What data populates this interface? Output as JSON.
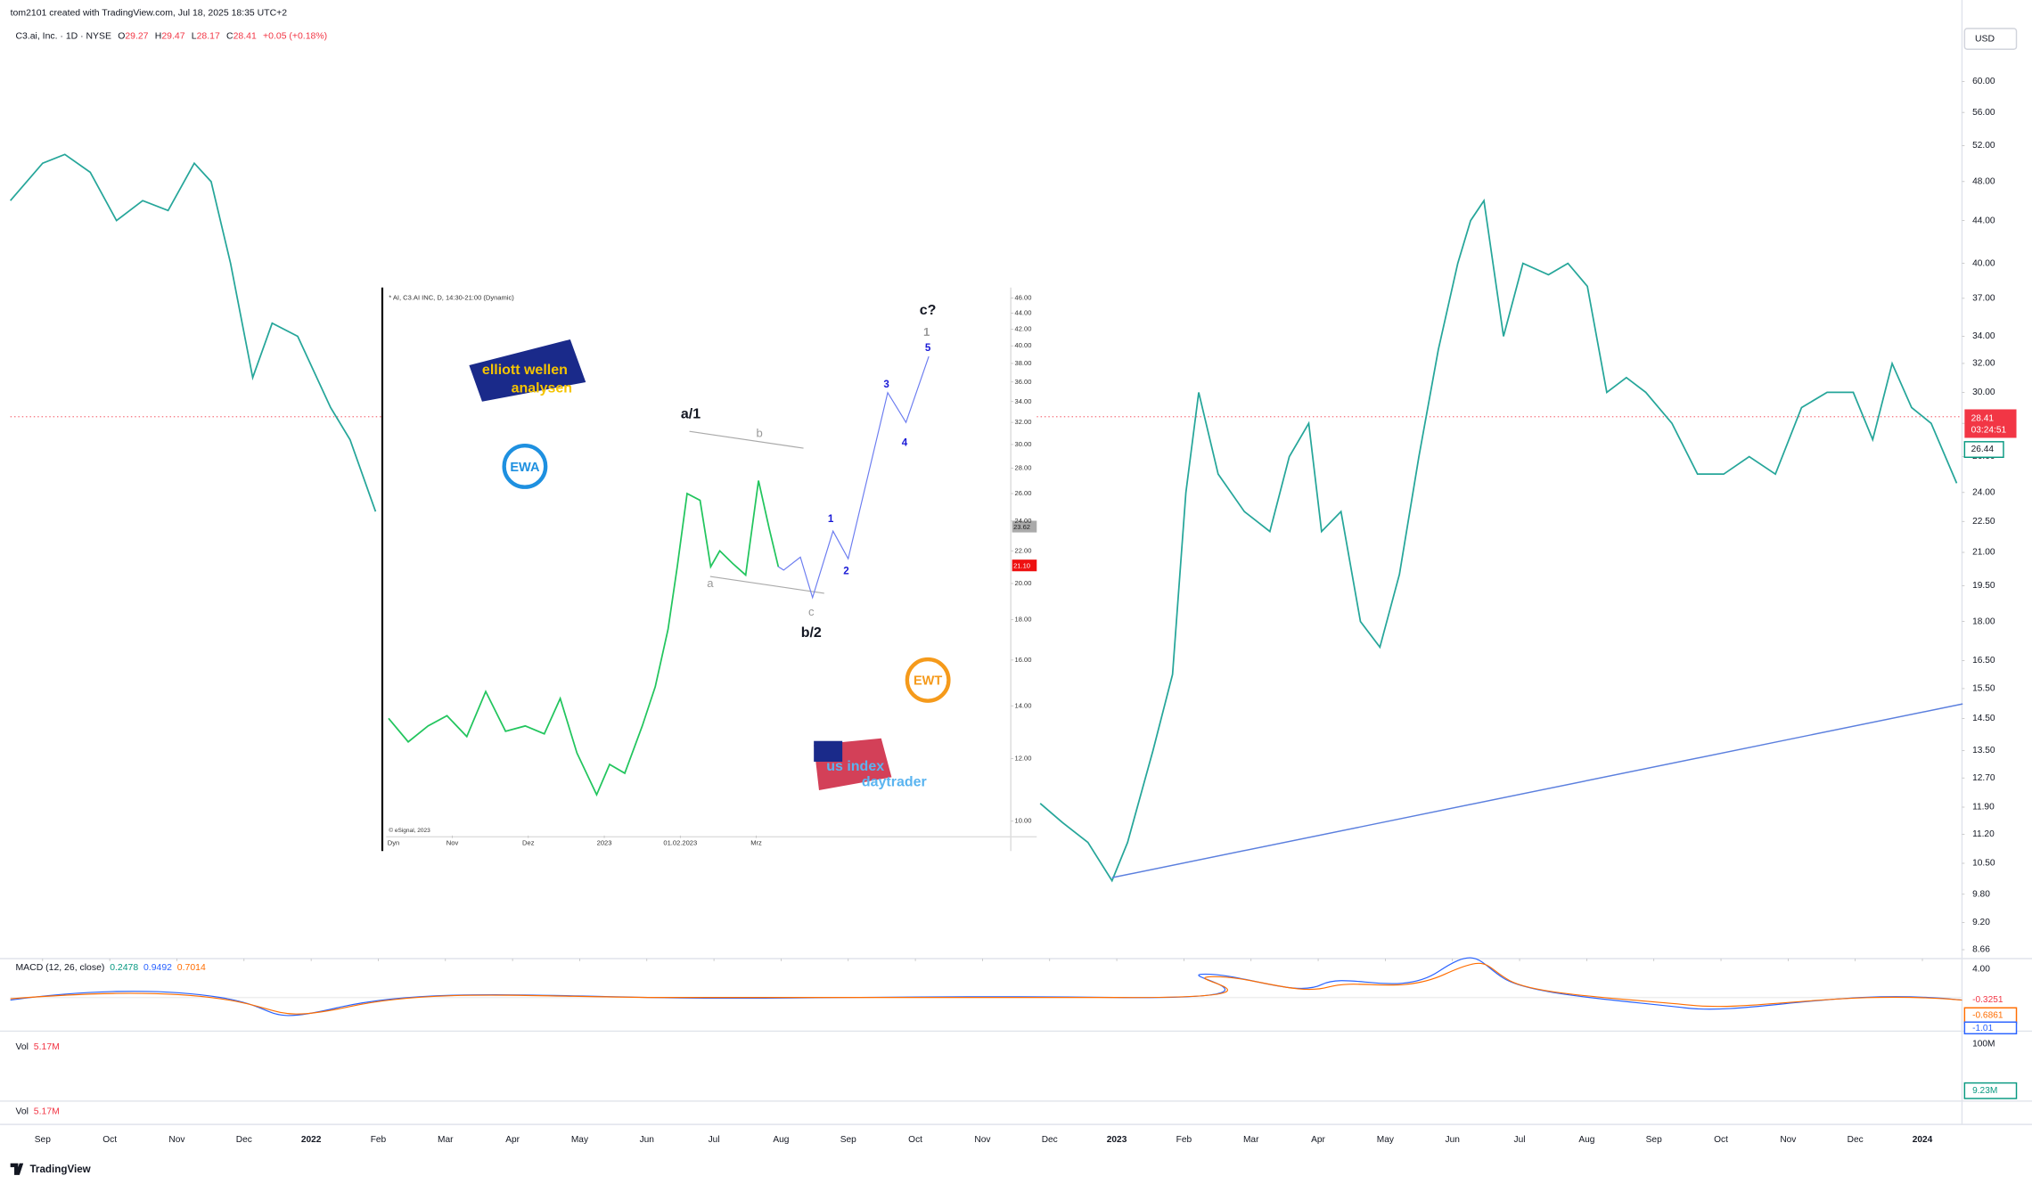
{
  "header": {
    "credit": "tom2101 created with TradingView.com, Jul 18, 2025 18:35 UTC+2"
  },
  "legend": {
    "symbol": "C3.ai, Inc. · 1D · NYSE",
    "open_label": "O",
    "open": "29.27",
    "high_label": "H",
    "high": "29.47",
    "low_label": "L",
    "low": "28.17",
    "close_label": "C",
    "close": "28.41",
    "change": "+0.05 (+0.18%)"
  },
  "currency": "USD",
  "price_tags": {
    "countdown": "03:24:51",
    "prev": "26.44"
  },
  "macd": {
    "label": "MACD (12, 26, close)",
    "values": [
      "0.2478",
      "0.9492",
      "0.7014"
    ],
    "axis_top": "4.00",
    "tags": [
      "-0.3251",
      "-0.6861",
      "-1.01"
    ]
  },
  "volume": {
    "label": "Vol",
    "value": "5.17M",
    "axis_top": "100M",
    "tag": "9.23M"
  },
  "volume2": {
    "label": "Vol",
    "value": "5.17M"
  },
  "footer": {
    "brand": "TradingView"
  },
  "inset": {
    "caption": "* AI, C3.AI INC, D, 14:30-21:00 (Dynamic)",
    "copyright": "© eSignal, 2023",
    "dyn": "Dyn",
    "price_tags": [
      "23.62",
      "21.10"
    ],
    "wave_labels": [
      "a/1",
      "b",
      "a",
      "c",
      "b/2",
      "1",
      "2",
      "3",
      "4",
      "5",
      "1",
      "c?"
    ],
    "logos": [
      "elliott wellen",
      "analysen",
      "EWA",
      "EWT",
      "us index",
      "daytrader"
    ]
  },
  "chart_data": [
    {
      "type": "line",
      "log_scale": true,
      "color": "#26a69a",
      "x": [
        -0.48,
        0,
        0.33,
        0.71,
        1.1,
        1.49,
        1.87,
        2.26,
        2.51,
        2.8,
        3.13,
        3.42,
        3.8,
        4.29,
        4.58,
        4.96,
        9.9,
        14.86,
        15.19,
        15.57,
        15.93,
        16.16,
        16.54,
        16.83,
        17.03,
        17.22,
        17.51,
        17.9,
        18.28,
        18.57,
        18.86,
        19.05,
        19.34,
        19.63,
        19.92,
        20.21,
        20.5,
        20.79,
        21.08,
        21.27,
        21.47,
        21.76,
        22.05,
        22.43,
        22.72,
        23.01,
        23.3,
        23.59,
        23.88,
        24.27,
        24.65,
        25.04,
        25.42,
        25.81,
        26.2,
        26.58,
        26.97,
        27.26,
        27.55,
        27.84,
        28.13,
        28.51
      ],
      "values": [
        46,
        50,
        51,
        49,
        44,
        46,
        45,
        50,
        48,
        40,
        31,
        35,
        34,
        29,
        27,
        23,
        null,
        12,
        11.5,
        11,
        10.1,
        11,
        13.5,
        16,
        24,
        30,
        25,
        23,
        22,
        26,
        28,
        22,
        23,
        18,
        17,
        20,
        26,
        33,
        40,
        44,
        46,
        34,
        40,
        39,
        40,
        38,
        30,
        31,
        30,
        28,
        25,
        25,
        26,
        25,
        29,
        30,
        30,
        27,
        32,
        29,
        28,
        24.5
      ],
      "last_price": 28.41,
      "trendline": {
        "x": [
          15.93,
          28.6
        ],
        "values": [
          10.17,
          14.98
        ],
        "color": "#5b7fde"
      },
      "xlim": [
        -0.48,
        28.59
      ],
      "xticks": [
        {
          "value": 0,
          "label": "Sep"
        },
        {
          "value": 1,
          "label": "Oct"
        },
        {
          "value": 2,
          "label": "Nov"
        },
        {
          "value": 3,
          "label": "Dec"
        },
        {
          "value": 4,
          "label": "2022"
        },
        {
          "value": 5,
          "label": "Feb"
        },
        {
          "value": 6,
          "label": "Mar"
        },
        {
          "value": 7,
          "label": "Apr"
        },
        {
          "value": 8,
          "label": "May"
        },
        {
          "value": 9,
          "label": "Jun"
        },
        {
          "value": 10,
          "label": "Jul"
        },
        {
          "value": 11,
          "label": "Aug"
        },
        {
          "value": 12,
          "label": "Sep"
        },
        {
          "value": 13,
          "label": "Oct"
        },
        {
          "value": 14,
          "label": "Nov"
        },
        {
          "value": 15,
          "label": "Dec"
        },
        {
          "value": 16,
          "label": "2023"
        },
        {
          "value": 17,
          "label": "Feb"
        },
        {
          "value": 18,
          "label": "Mar"
        },
        {
          "value": 19,
          "label": "Apr"
        },
        {
          "value": 20,
          "label": "May"
        },
        {
          "value": 21,
          "label": "Jun"
        },
        {
          "value": 22,
          "label": "Jul"
        },
        {
          "value": 23,
          "label": "Aug"
        },
        {
          "value": 24,
          "label": "Sep"
        },
        {
          "value": 25,
          "label": "Oct"
        },
        {
          "value": 26,
          "label": "Nov"
        },
        {
          "value": 27,
          "label": "Dec"
        },
        {
          "value": 28,
          "label": "2024"
        }
      ],
      "ylim": [
        8.49,
        64.1
      ],
      "yticks": [
        {
          "value": 60,
          "label": "60.00"
        },
        {
          "value": 56,
          "label": "56.00"
        },
        {
          "value": 52,
          "label": "52.00"
        },
        {
          "value": 48,
          "label": "48.00"
        },
        {
          "value": 44,
          "label": "44.00"
        },
        {
          "value": 40,
          "label": "40.00"
        },
        {
          "value": 37,
          "label": "37.00"
        },
        {
          "value": 34,
          "label": "34.00"
        },
        {
          "value": 32,
          "label": "32.00"
        },
        {
          "value": 30,
          "label": "30.00"
        },
        {
          "value": 28,
          "label": "28.00"
        },
        {
          "value": 26,
          "label": "26.00"
        },
        {
          "value": 24,
          "label": "24.00"
        },
        {
          "value": 22.5,
          "label": "22.50"
        },
        {
          "value": 21,
          "label": "21.00"
        },
        {
          "value": 19.5,
          "label": "19.50"
        },
        {
          "value": 18,
          "label": "18.00"
        },
        {
          "value": 16.5,
          "label": "16.50"
        },
        {
          "value": 15.5,
          "label": "15.50"
        },
        {
          "value": 14.5,
          "label": "14.50"
        },
        {
          "value": 13.5,
          "label": "13.50"
        },
        {
          "value": 12.7,
          "label": "12.70"
        },
        {
          "value": 11.9,
          "label": "11.90"
        },
        {
          "value": 11.2,
          "label": "11.20"
        },
        {
          "value": 10.5,
          "label": "10.50"
        },
        {
          "value": 9.8,
          "label": "9.80"
        },
        {
          "value": 9.2,
          "label": "9.20"
        },
        {
          "value": 8.66,
          "label": "8.66"
        }
      ]
    },
    {
      "type": "line",
      "log_scale": true,
      "color": "#22c55e",
      "projection_color": "#6b7cf0",
      "x": [
        -0.84,
        -0.58,
        -0.32,
        -0.07,
        0.19,
        0.44,
        0.7,
        0.96,
        1.21,
        1.42,
        1.64,
        1.9,
        2.07,
        2.27,
        2.5,
        2.67,
        2.84,
        2.96,
        3.09,
        3.26,
        3.4,
        3.52,
        3.69,
        3.86,
        4.03,
        4.17,
        4.29
      ],
      "values": [
        13.5,
        12.6,
        13.2,
        13.6,
        12.8,
        14.6,
        13,
        13.2,
        12.9,
        14.3,
        12.2,
        10.8,
        11.8,
        11.5,
        13.2,
        14.8,
        17.5,
        21,
        26,
        25.5,
        21,
        22,
        21.2,
        20.5,
        27,
        23.5,
        21
      ],
      "projection_x": [
        4.29,
        4.36,
        4.58,
        4.74,
        5.01,
        5.21,
        5.73,
        5.97,
        6.27
      ],
      "projection": [
        21,
        20.8,
        21.6,
        19.2,
        23.3,
        21.5,
        34.9,
        32,
        38.8
      ],
      "xlim": [
        -0.87,
        7.35
      ],
      "xticks": [
        {
          "value": 0,
          "label": "Nov"
        },
        {
          "value": 1,
          "label": "Dez"
        },
        {
          "value": 2,
          "label": "2023"
        },
        {
          "value": 3,
          "label": "01.02.2023"
        },
        {
          "value": 4,
          "label": "Mrz"
        }
      ],
      "ylim": [
        9.59,
        46.7
      ],
      "yticks": [
        {
          "value": 46,
          "label": "46.00"
        },
        {
          "value": 44,
          "label": "44.00"
        },
        {
          "value": 42,
          "label": "42.00"
        },
        {
          "value": 40,
          "label": "40.00"
        },
        {
          "value": 38,
          "label": "38.00"
        },
        {
          "value": 36,
          "label": "36.00"
        },
        {
          "value": 34,
          "label": "34.00"
        },
        {
          "value": 32,
          "label": "32.00"
        },
        {
          "value": 30,
          "label": "30.00"
        },
        {
          "value": 28,
          "label": "28.00"
        },
        {
          "value": 26,
          "label": "26.00"
        },
        {
          "value": 24,
          "label": "24.00"
        },
        {
          "value": 22,
          "label": "22.00"
        },
        {
          "value": 20,
          "label": "20.00"
        },
        {
          "value": 18,
          "label": "18.00"
        },
        {
          "value": 16,
          "label": "16.00"
        },
        {
          "value": 14,
          "label": "14.00"
        },
        {
          "value": 12,
          "label": "12.00"
        },
        {
          "value": 10,
          "label": "10.00"
        }
      ]
    }
  ]
}
